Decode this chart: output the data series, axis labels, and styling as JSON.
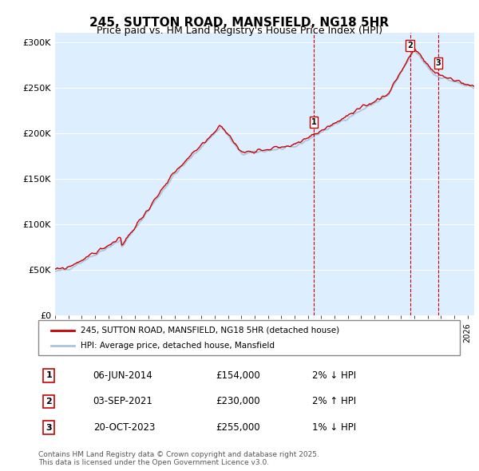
{
  "title1": "245, SUTTON ROAD, MANSFIELD, NG18 5HR",
  "title2": "Price paid vs. HM Land Registry's House Price Index (HPI)",
  "ylabel_ticks": [
    "£0",
    "£50K",
    "£100K",
    "£150K",
    "£200K",
    "£250K",
    "£300K"
  ],
  "ytick_values": [
    0,
    50000,
    100000,
    150000,
    200000,
    250000,
    300000
  ],
  "ylim": [
    0,
    310000
  ],
  "xlim_start": 1995.0,
  "xlim_end": 2026.5,
  "hpi_color": "#aac4dd",
  "price_color": "#cc0000",
  "bg_color": "#ddeeff",
  "plot_bg": "#ddeeff",
  "legend_label1": "245, SUTTON ROAD, MANSFIELD, NG18 5HR (detached house)",
  "legend_label2": "HPI: Average price, detached house, Mansfield",
  "transactions": [
    {
      "num": 1,
      "date": "06-JUN-2014",
      "price": 154000,
      "pct": "2%",
      "dir": "↓",
      "x": 2014.44
    },
    {
      "num": 2,
      "date": "03-SEP-2021",
      "price": 230000,
      "pct": "2%",
      "dir": "↑",
      "x": 2021.67
    },
    {
      "num": 3,
      "date": "20-OCT-2023",
      "price": 255000,
      "pct": "1%",
      "dir": "↓",
      "x": 2023.8
    }
  ],
  "footer": "Contains HM Land Registry data © Crown copyright and database right 2025.\nThis data is licensed under the Open Government Licence v3.0.",
  "hpi_seed": 42,
  "price_seed": 99
}
